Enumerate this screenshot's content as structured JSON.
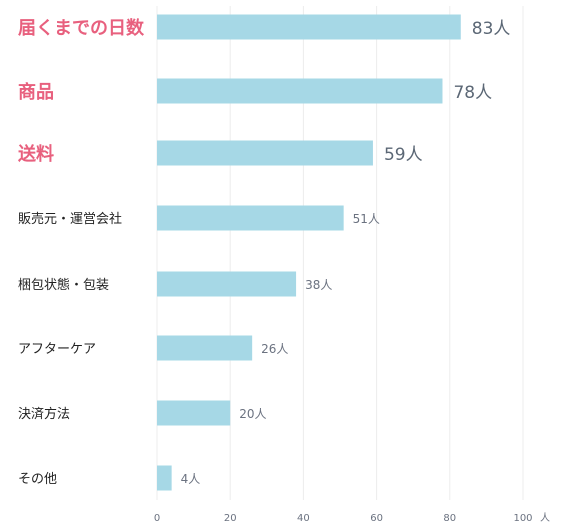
{
  "chart_data": {
    "type": "bar",
    "orientation": "horizontal",
    "categories": [
      "届くまでの日数",
      "商品",
      "送料",
      "販売元・運営会社",
      "梱包状態・包装",
      "アフターケア",
      "決済方法",
      "その他"
    ],
    "values": [
      83,
      78,
      59,
      51,
      38,
      26,
      20,
      4
    ],
    "value_labels": [
      "83人",
      "78人",
      "59人",
      "51人",
      "38人",
      "26人",
      "20人",
      "4人"
    ],
    "highlighted_count": 3,
    "xlim": [
      0,
      100
    ],
    "xticks": [
      "0",
      "20",
      "40",
      "60",
      "80",
      "100"
    ],
    "x_unit": "人",
    "grid": true,
    "colors": {
      "bar": "#a6d8e6",
      "highlight_label": "#e8607e",
      "label": "#222222",
      "value": "#6b7280",
      "grid": "#ececec"
    }
  }
}
